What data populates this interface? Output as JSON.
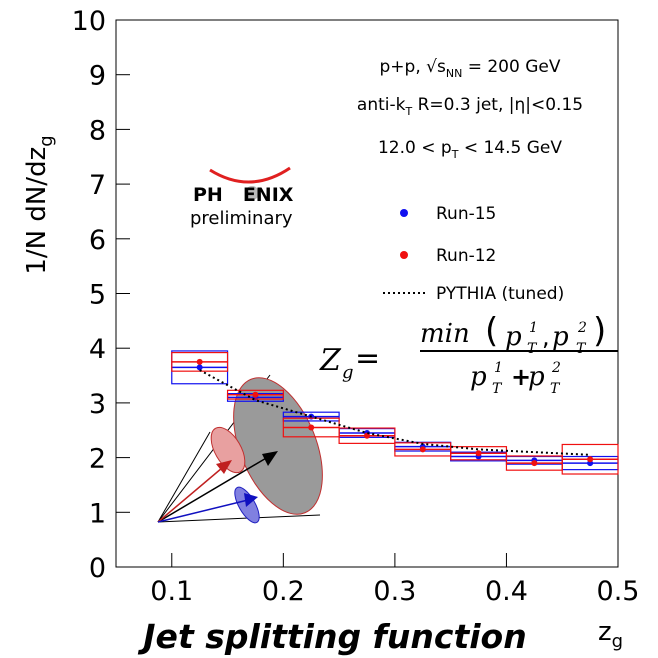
{
  "chart_data": {
    "type": "scatter",
    "title": "Jet splitting function",
    "x_label": [
      "z",
      "g"
    ],
    "y_label": [
      "1/N dN/dz",
      "g"
    ],
    "xlim": [
      0.05,
      0.5
    ],
    "ylim": [
      0,
      10
    ],
    "xticks": [
      0.1,
      0.2,
      0.3,
      0.4,
      0.5
    ],
    "yticks": [
      0,
      1,
      2,
      3,
      4,
      5,
      6,
      7,
      8,
      9,
      10
    ],
    "x": [
      0.125,
      0.175,
      0.225,
      0.275,
      0.325,
      0.375,
      0.425,
      0.475
    ],
    "bin_width": 0.05,
    "series": [
      {
        "name": "Run-15",
        "color": "#1010f0",
        "values": [
          3.65,
          3.1,
          2.75,
          2.45,
          2.2,
          2.02,
          1.95,
          1.9
        ],
        "sys": [
          0.3,
          0.07,
          0.08,
          0.08,
          0.08,
          0.08,
          0.07,
          0.12
        ]
      },
      {
        "name": "Run-12",
        "color": "#f01010",
        "values": [
          3.75,
          3.15,
          2.55,
          2.4,
          2.15,
          2.08,
          1.9,
          1.97
        ],
        "sys": [
          0.17,
          0.08,
          0.17,
          0.14,
          0.12,
          0.12,
          0.13,
          0.27
        ]
      },
      {
        "name": "PYTHIA (tuned)",
        "color": "#000000",
        "style": "dotted",
        "values": [
          3.6,
          3.05,
          2.75,
          2.45,
          2.25,
          2.15,
          2.1,
          2.05
        ]
      }
    ],
    "annotations": [
      [
        "p+p, ",
        "√",
        "s",
        "NN",
        " = 200 GeV"
      ],
      [
        "anti-k",
        "T",
        " R=0.3 jet, |η|<0.15"
      ],
      [
        "12.0 < p",
        "T",
        " < 14.5 GeV"
      ]
    ],
    "logo": [
      "PH",
      "ENIX",
      "preliminary"
    ],
    "formula": [
      "Z",
      "g",
      "=",
      "min",
      "(",
      "p",
      "T",
      "1",
      ",",
      "p",
      "T",
      "2",
      ")",
      "p",
      "T",
      "1",
      "+",
      "p",
      "T",
      "2"
    ]
  }
}
